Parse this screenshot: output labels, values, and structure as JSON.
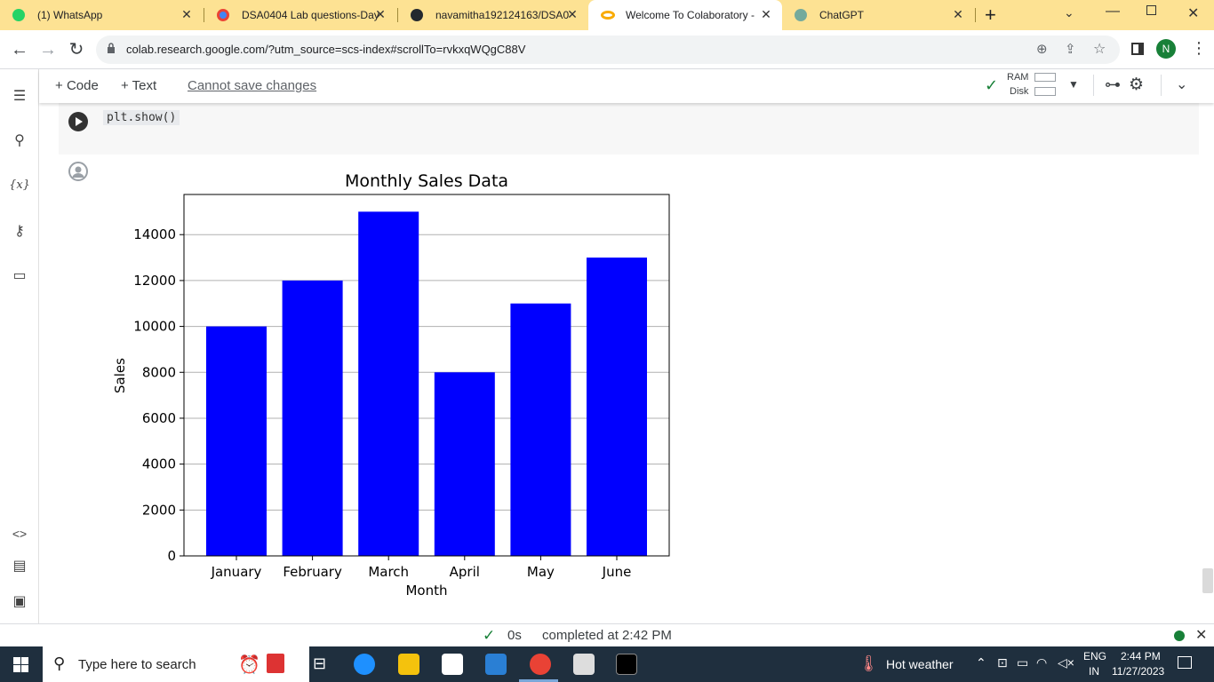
{
  "browser": {
    "tabs": [
      {
        "label": "(1) WhatsApp",
        "active": false,
        "favicon": "whatsapp-icon"
      },
      {
        "label": "DSA0404 Lab questions-Day",
        "active": false,
        "favicon": "chrome-icon"
      },
      {
        "label": "navamitha192124163/DSA0",
        "active": false,
        "favicon": "github-icon"
      },
      {
        "label": "Welcome To Colaboratory -",
        "active": true,
        "favicon": "colab-icon"
      },
      {
        "label": "ChatGPT",
        "active": false,
        "favicon": "chatgpt-icon"
      }
    ],
    "new_tab": "+",
    "url": "colab.research.google.com/?utm_source=scs-index#scrollTo=rvkxqWQgC88V",
    "profile_initial": "N"
  },
  "colab": {
    "add_code": "Code",
    "add_text": "Text",
    "cannot_save": "Cannot save changes",
    "ram_label": "RAM",
    "disk_label": "Disk"
  },
  "cell": {
    "code_line": "plt.show()"
  },
  "chart_data": {
    "type": "bar",
    "title": "Monthly Sales Data",
    "xlabel": "Month",
    "ylabel": "Sales",
    "categories": [
      "January",
      "February",
      "March",
      "April",
      "May",
      "June"
    ],
    "values": [
      10000,
      12000,
      15000,
      8000,
      11000,
      13000
    ],
    "ylim": [
      0,
      15750
    ],
    "yticks": [
      0,
      2000,
      4000,
      6000,
      8000,
      10000,
      12000,
      14000
    ],
    "grid": "y",
    "bar_color": "#0000ff"
  },
  "status": {
    "duration": "0s",
    "completed": "completed at 2:42 PM"
  },
  "taskbar": {
    "search_placeholder": "Type here to search",
    "weather": "Hot weather",
    "lang_top": "ENG",
    "lang_bottom": "IN",
    "time": "2:44 PM",
    "date": "11/27/2023"
  },
  "colors": {
    "tabstrip": "#fde293",
    "bar": "#0000ff",
    "status_ok": "#188038"
  }
}
